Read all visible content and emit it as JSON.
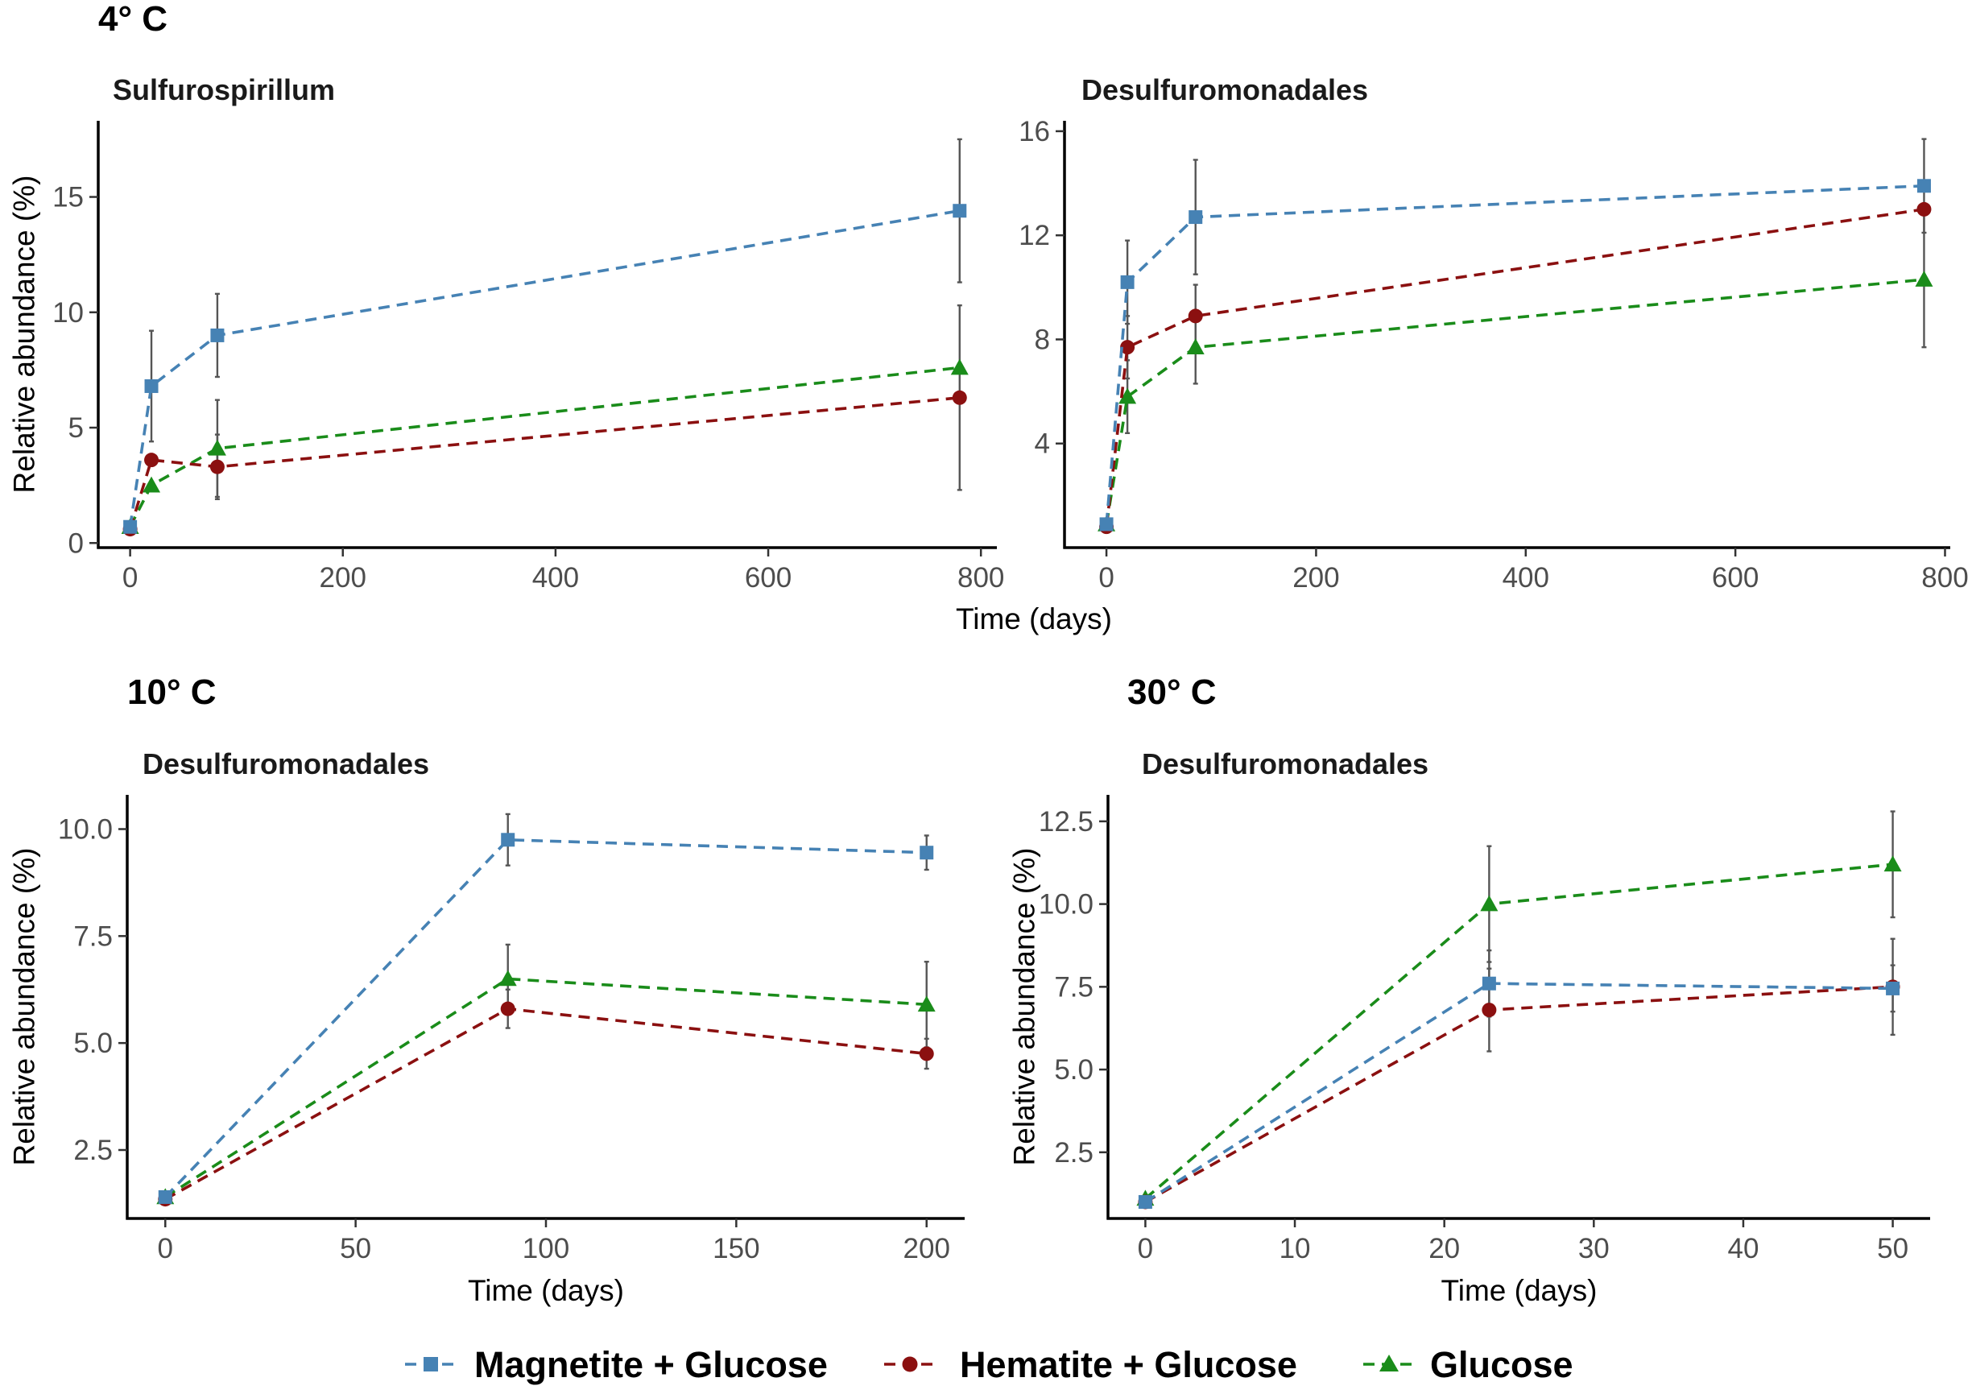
{
  "colors": {
    "magnetite": "#4682b4",
    "hematite": "#8b1010",
    "glucose": "#1a8c1a"
  },
  "legend": [
    {
      "key": "magnetite",
      "label": "Magnetite + Glucose",
      "marker": "square"
    },
    {
      "key": "hematite",
      "label": "Hematite + Glucose",
      "marker": "circle"
    },
    {
      "key": "glucose",
      "label": "Glucose",
      "marker": "triangle"
    }
  ],
  "group_titles": [
    "4° C",
    "10° C",
    "30° C"
  ],
  "chart_data": [
    {
      "type": "line",
      "group": "4° C",
      "title": "Sulfurospirillum",
      "xlabel": "",
      "ylabel": "Relative abundance (%)",
      "xlim": [
        -30,
        815
      ],
      "ylim": [
        -0.2,
        18.3
      ],
      "xticks": [
        0,
        200,
        400,
        600,
        800
      ],
      "yticks": [
        0,
        5,
        10,
        15
      ],
      "series": [
        {
          "name": "Magnetite + Glucose",
          "key": "magnetite",
          "x": [
            0,
            20,
            82,
            780
          ],
          "y": [
            0.7,
            6.8,
            9.0,
            14.4
          ],
          "err": [
            0.2,
            2.4,
            1.8,
            3.1
          ]
        },
        {
          "name": "Hematite + Glucose",
          "key": "hematite",
          "x": [
            0,
            20,
            82,
            780
          ],
          "y": [
            0.6,
            3.6,
            3.3,
            6.3
          ],
          "err": [
            0.1,
            0,
            1.4,
            4.0
          ]
        },
        {
          "name": "Glucose",
          "key": "glucose",
          "x": [
            0,
            20,
            82,
            780
          ],
          "y": [
            0.7,
            2.5,
            4.1,
            7.6
          ],
          "err": [
            0.1,
            0,
            2.1,
            0
          ]
        }
      ]
    },
    {
      "type": "line",
      "group": "4° C",
      "title": "Desulfuromonadales",
      "xlabel": "Time (days)",
      "ylabel": "",
      "xlim": [
        -40,
        805
      ],
      "ylim": [
        0,
        16.4
      ],
      "xticks": [
        0,
        200,
        400,
        600,
        800
      ],
      "yticks": [
        4,
        8,
        12,
        16
      ],
      "series": [
        {
          "name": "Magnetite + Glucose",
          "key": "magnetite",
          "x": [
            0,
            20,
            85,
            780
          ],
          "y": [
            0.9,
            10.2,
            12.7,
            13.9
          ],
          "err": [
            0.1,
            1.6,
            2.2,
            1.8
          ]
        },
        {
          "name": "Hematite + Glucose",
          "key": "hematite",
          "x": [
            0,
            20,
            85,
            780
          ],
          "y": [
            0.8,
            7.7,
            8.9,
            13.0
          ],
          "err": [
            0.1,
            1.2,
            1.2,
            0
          ]
        },
        {
          "name": "Glucose",
          "key": "glucose",
          "x": [
            0,
            20,
            85,
            780
          ],
          "y": [
            0.9,
            5.8,
            7.7,
            10.3
          ],
          "err": [
            0.1,
            1.4,
            1.4,
            2.6
          ]
        }
      ]
    },
    {
      "type": "line",
      "group": "10° C",
      "title": "Desulfuromonadales",
      "xlabel": "Time (days)",
      "ylabel": "Relative abundance (%)",
      "xlim": [
        -10,
        210
      ],
      "ylim": [
        0.9,
        10.8
      ],
      "xticks": [
        0,
        50,
        100,
        150,
        200
      ],
      "yticks": [
        2.5,
        5.0,
        7.5,
        10.0
      ],
      "ytick_labels": [
        "2.5",
        "5.0",
        "7.5",
        "10.0"
      ],
      "series": [
        {
          "name": "Magnetite + Glucose",
          "key": "magnetite",
          "x": [
            0,
            90,
            200
          ],
          "y": [
            1.4,
            9.75,
            9.45
          ],
          "err": [
            0.1,
            0.6,
            0.4
          ]
        },
        {
          "name": "Hematite + Glucose",
          "key": "hematite",
          "x": [
            0,
            90,
            200
          ],
          "y": [
            1.35,
            5.8,
            4.75
          ],
          "err": [
            0.1,
            0.45,
            0.35
          ]
        },
        {
          "name": "Glucose",
          "key": "glucose",
          "x": [
            0,
            90,
            200
          ],
          "y": [
            1.4,
            6.5,
            5.9
          ],
          "err": [
            0.1,
            0.8,
            1.0
          ]
        }
      ]
    },
    {
      "type": "line",
      "group": "30° C",
      "title": "Desulfuromonadales",
      "xlabel": "Time (days)",
      "ylabel": "Relative abundance (%)",
      "xlim": [
        -2.5,
        52.5
      ],
      "ylim": [
        0.5,
        13.3
      ],
      "xticks": [
        0,
        10,
        20,
        30,
        40,
        50
      ],
      "yticks": [
        2.5,
        5.0,
        7.5,
        10.0,
        12.5
      ],
      "ytick_labels": [
        "2.5",
        "5.0",
        "7.5",
        "10.0",
        "12.5"
      ],
      "series": [
        {
          "name": "Magnetite + Glucose",
          "key": "magnetite",
          "x": [
            0,
            23,
            50
          ],
          "y": [
            1.0,
            7.6,
            7.45
          ],
          "err": [
            0.1,
            1.0,
            0.7
          ]
        },
        {
          "name": "Hematite + Glucose",
          "key": "hematite",
          "x": [
            0,
            23,
            50
          ],
          "y": [
            1.0,
            6.8,
            7.5
          ],
          "err": [
            0.1,
            1.25,
            1.45
          ]
        },
        {
          "name": "Glucose",
          "key": "glucose",
          "x": [
            0,
            23,
            50
          ],
          "y": [
            1.1,
            10.0,
            11.2
          ],
          "err": [
            0.1,
            1.75,
            1.6
          ]
        }
      ]
    }
  ]
}
